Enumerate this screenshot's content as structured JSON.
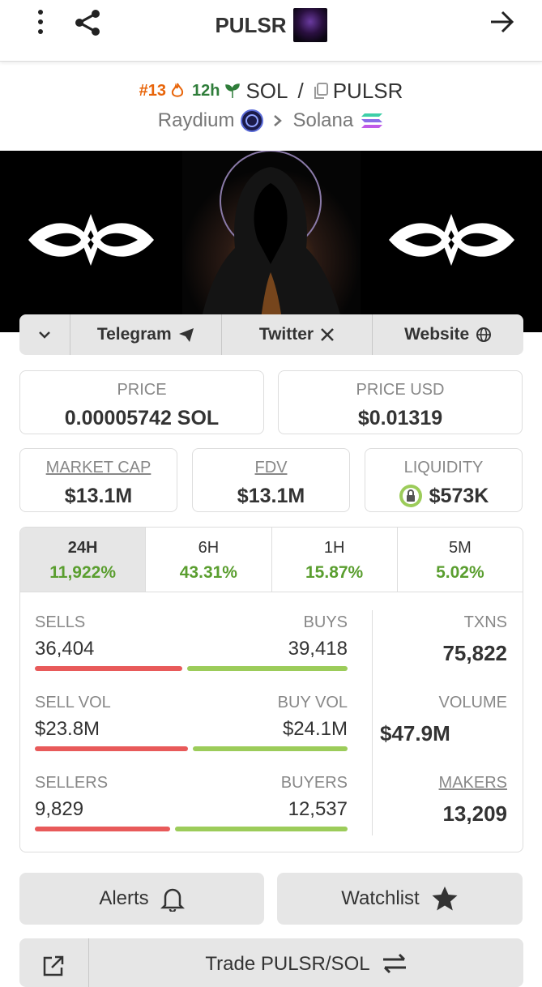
{
  "header": {
    "title": "PULSR"
  },
  "pair": {
    "rank": "#13",
    "age": "12h",
    "quote": "SOL",
    "separator": "/",
    "base": "PULSR",
    "dex": "Raydium",
    "chain": "Solana"
  },
  "links": [
    "Telegram",
    "Twitter",
    "Website"
  ],
  "price": [
    {
      "label": "PRICE",
      "value": "0.00005742 SOL"
    },
    {
      "label": "PRICE USD",
      "value": "$0.01319"
    }
  ],
  "metrics": [
    {
      "label": "MARKET CAP",
      "value": "$13.1M"
    },
    {
      "label": "FDV",
      "value": "$13.1M"
    },
    {
      "label": "LIQUIDITY",
      "value": "$573K"
    }
  ],
  "stats": {
    "tabs": [
      {
        "label": "24H",
        "value": "11,922%"
      },
      {
        "label": "6H",
        "value": "43.31%"
      },
      {
        "label": "1H",
        "value": "15.87%"
      },
      {
        "label": "5M",
        "value": "5.02%"
      }
    ],
    "rows": [
      {
        "left": {
          "label": "SELLS",
          "value": {
            "value": 36404,
            "label": "36,404"
          }
        },
        "right": {
          "label": "BUYS",
          "value": {
            "value": 39418,
            "label": "39,418"
          }
        }
      },
      {
        "left": {
          "label": "SELL VOL",
          "value": {
            "value": 23800000,
            "label": "$23.8M"
          }
        },
        "right": {
          "label": "BUY VOL",
          "value": {
            "value": 24100000,
            "label": "$24.1M"
          }
        }
      },
      {
        "left": {
          "label": "SELLERS",
          "value": {
            "value": 9829,
            "label": "9,829"
          }
        },
        "right": {
          "label": "BUYERS",
          "value": {
            "value": 12537,
            "label": "12,537"
          }
        }
      }
    ],
    "totals": [
      {
        "label": "TXNS",
        "value": "75,822"
      },
      {
        "label": "VOLUME",
        "value": "$47.9M"
      },
      {
        "label": "MAKERS",
        "value": "13,209"
      }
    ]
  },
  "actions": [
    "Alerts",
    "Watchlist"
  ],
  "trade": "Trade PULSR/SOL"
}
